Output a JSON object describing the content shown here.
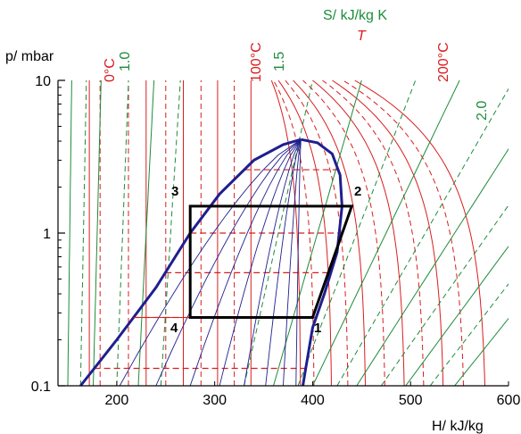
{
  "chart_data": {
    "type": "line",
    "title": "",
    "xlabel": "H/ kJ/kg",
    "ylabel": "p/ mbar",
    "x_scale": "linear",
    "y_scale": "log",
    "xlim": [
      140,
      600
    ],
    "ylim": [
      0.1,
      10
    ],
    "x_ticks": [
      "200",
      "300",
      "400",
      "500",
      "600"
    ],
    "x_tick_values": [
      200,
      300,
      400,
      500,
      600
    ],
    "y_ticks": [
      "0.1",
      "1",
      "10"
    ],
    "y_tick_values": [
      0.1,
      1,
      10
    ],
    "legend": {
      "entropy_label": "S/ kJ/kg K",
      "temperature_label": "T"
    },
    "curve_labels": {
      "temperature": [
        "0°C",
        "100°C",
        "200°C"
      ],
      "entropy": [
        "1.0",
        "1.5",
        "2.0"
      ]
    },
    "colors": {
      "isotherm": "#d81e1e",
      "isentrope": "#1e8c3a",
      "saturation": "#1f1f8f",
      "quality": "#1f1f8f",
      "cycle": "#000000"
    },
    "saturation_dome": {
      "critical_point": [
        388,
        4.1
      ],
      "liquid_line": [
        [
          163,
          0.1
        ],
        [
          200,
          0.2
        ],
        [
          240,
          0.44
        ],
        [
          275,
          1.0
        ],
        [
          305,
          1.8
        ],
        [
          340,
          3.0
        ],
        [
          370,
          3.8
        ],
        [
          388,
          4.1
        ]
      ],
      "vapor_line": [
        [
          388,
          4.1
        ],
        [
          405,
          3.9
        ],
        [
          420,
          3.3
        ],
        [
          428,
          2.4
        ],
        [
          430,
          1.5
        ],
        [
          425,
          0.75
        ],
        [
          412,
          0.4
        ],
        [
          400,
          0.24
        ],
        [
          392,
          0.12
        ],
        [
          390,
          0.1
        ]
      ]
    },
    "cycle": {
      "points": [
        {
          "label": "1",
          "H": 400,
          "p": 0.28
        },
        {
          "label": "2",
          "H": 440,
          "p": 1.5
        },
        {
          "label": "3",
          "H": 275,
          "p": 1.5
        },
        {
          "label": "4",
          "H": 275,
          "p": 0.28
        }
      ]
    },
    "isobar_segments_p": [
      0.13,
      0.28,
      0.55,
      1.0,
      1.5,
      2.6
    ]
  }
}
